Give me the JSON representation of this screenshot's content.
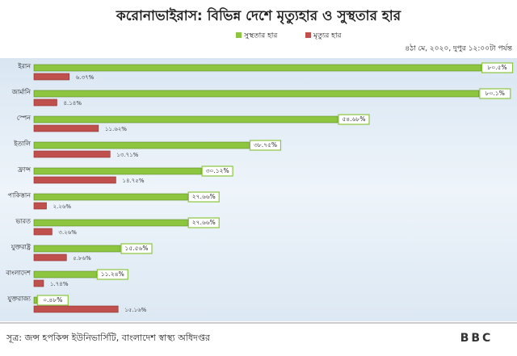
{
  "chart_data": {
    "type": "hbar",
    "title": "করোনাভাইরাস: বিভিন্ন দেশে মৃত্যুহার ও সুস্থতার হার",
    "subtitle": "৪ঠা মে, ২০২০, দুপুর ১২:০০টা পর্যন্ত",
    "source": "সূত্র: জন্স হপকিন্স ইউনিভার্সিটি, বাংলাদেশ স্বাস্থ্য অধিদপ্তর",
    "logo": "BBC",
    "categories": [
      "ইরান",
      "জার্মানি",
      "স্পেন",
      "ইতালি",
      "ফ্রান্স",
      "পাকিস্তান",
      "ভারত",
      "যুক্তরাষ্ট্র",
      "বাংলাদেশ",
      "যুক্তরাজ্য"
    ],
    "series": [
      {
        "name": "সুস্থতার হার",
        "color": "#8cc63e",
        "values": [
          80.5,
          80.1,
          54.68,
          38.75,
          30.12,
          27.66,
          27.66,
          15.56,
          11.24,
          0.48
        ],
        "value_labels": [
          "৮০.৫%",
          "৮০.১%",
          "৫৪.৬৮%",
          "৩৮.৭৫%",
          "৩০.১২%",
          "২৭.৬৬%",
          "২৭.৬৬%",
          "১৫.৫৬%",
          "১১.২৪%",
          "০.৪৮%"
        ]
      },
      {
        "name": "মৃত্যুর হার",
        "color": "#c0504d",
        "values": [
          6.37,
          4.14,
          11.62,
          13.71,
          14.75,
          2.26,
          3.26,
          5.86,
          1.74,
          15.16
        ],
        "value_labels": [
          "৬.৩৭%",
          "৪.১৪%",
          "১১.৬২%",
          "১৩.৭১%",
          "১৪.৭৫%",
          "২.২৬%",
          "৩.২৬%",
          "৫.৮৬%",
          "১.৭৪%",
          "১৫.১৬%"
        ]
      }
    ],
    "xlim": [
      0,
      81
    ]
  }
}
